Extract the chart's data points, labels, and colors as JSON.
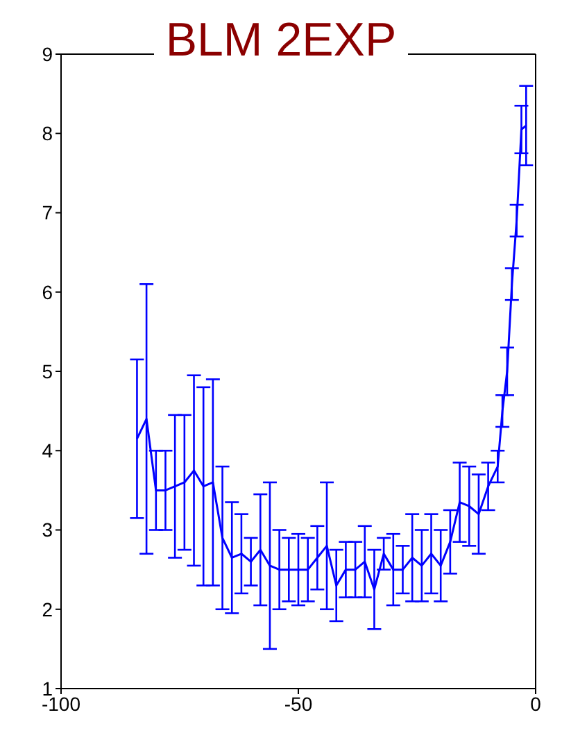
{
  "chart_data": {
    "type": "line",
    "title": "BLM 2EXP",
    "x": [
      -84,
      -82,
      -80,
      -78,
      -76,
      -74,
      -72,
      -70,
      -68,
      -66,
      -64,
      -62,
      -60,
      -58,
      -56,
      -54,
      -52,
      -50,
      -48,
      -46,
      -44,
      -42,
      -40,
      -38,
      -36,
      -34,
      -32,
      -30,
      -28,
      -26,
      -24,
      -22,
      -20,
      -18,
      -16,
      -14,
      -12,
      -10,
      -8,
      -7,
      -6,
      -5,
      -4,
      -3,
      -2
    ],
    "series": [
      {
        "color": "#0000ff",
        "values": [
          4.15,
          4.4,
          3.5,
          3.5,
          3.55,
          3.6,
          3.75,
          3.55,
          3.6,
          2.9,
          2.65,
          2.7,
          2.6,
          2.75,
          2.55,
          2.5,
          2.5,
          2.5,
          2.5,
          2.65,
          2.8,
          2.3,
          2.5,
          2.5,
          2.6,
          2.25,
          2.7,
          2.5,
          2.5,
          2.65,
          2.55,
          2.7,
          2.55,
          2.85,
          3.35,
          3.3,
          3.2,
          3.55,
          3.8,
          4.5,
          5.0,
          6.1,
          6.9,
          8.05,
          8.1
        ],
        "errors": [
          1.0,
          1.7,
          0.5,
          0.5,
          0.9,
          0.85,
          1.2,
          1.25,
          1.3,
          0.9,
          0.7,
          0.5,
          0.3,
          0.7,
          1.05,
          0.5,
          0.4,
          0.45,
          0.4,
          0.4,
          0.8,
          0.45,
          0.35,
          0.35,
          0.45,
          0.5,
          0.2,
          0.45,
          0.3,
          0.55,
          0.45,
          0.5,
          0.45,
          0.4,
          0.5,
          0.5,
          0.5,
          0.3,
          0.2,
          0.2,
          0.3,
          0.2,
          0.2,
          0.3,
          0.5
        ]
      }
    ],
    "xlim": [
      -100,
      0
    ],
    "xticks": [
      -100,
      -50,
      0
    ],
    "ylim": [
      1,
      9
    ],
    "yticks": [
      1,
      2,
      3,
      4,
      5,
      6,
      7,
      8,
      9
    ],
    "grid": false,
    "legend": false,
    "marker": "none",
    "line_style": "solid"
  }
}
